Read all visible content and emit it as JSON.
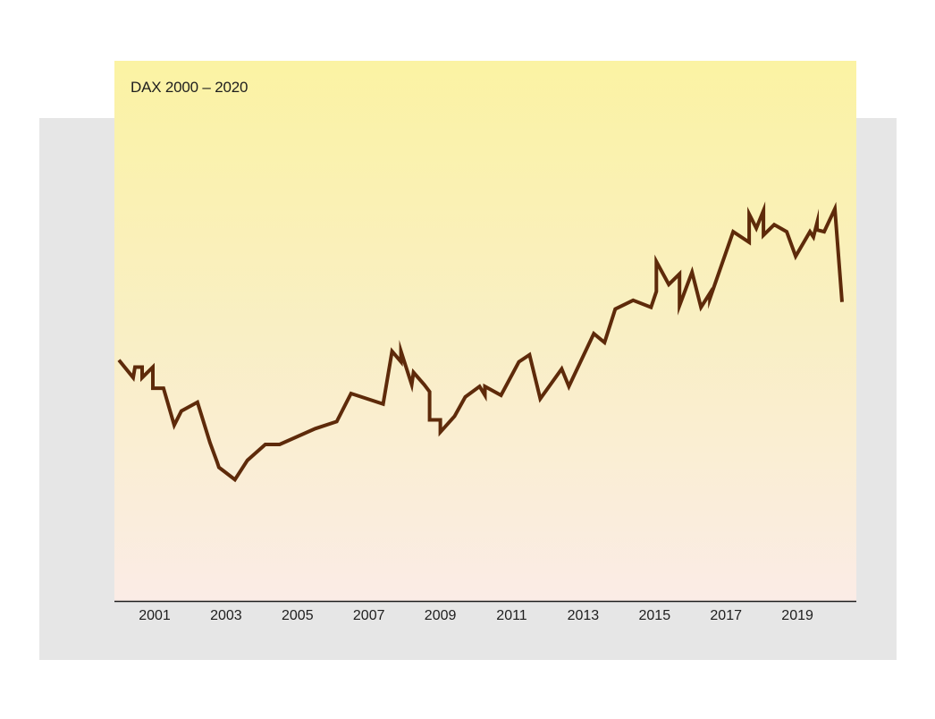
{
  "chart_data": {
    "type": "line",
    "title": "DAX 2000 – 2020",
    "xlabel": "",
    "ylabel": "",
    "x_tick_labels": [
      "2001",
      "2003",
      "2005",
      "2007",
      "2009",
      "2011",
      "2013",
      "2015",
      "2017",
      "2019"
    ],
    "x_tick_values": [
      2001,
      2003,
      2005,
      2007,
      2009,
      2011,
      2013,
      2015,
      2017,
      2019
    ],
    "xlim": [
      2000,
      2020.4
    ],
    "ylim": [
      0,
      14800
    ],
    "grid": false,
    "colors": {
      "line": "#5e2a0a",
      "axis": "#1e1e1e",
      "background_top": "#fbf3a3",
      "background_bottom": "#fbece6",
      "backdrop": "#e6e6e6"
    },
    "series": [
      {
        "x": [
          2000.0,
          2000.4,
          2000.45,
          2000.65,
          2000.65,
          2000.95,
          2000.95,
          2001.25,
          2001.55,
          2001.75,
          2002.2,
          2002.55,
          2002.75,
          2002.8,
          2003.25,
          2003.6,
          2004.1,
          2004.5,
          2005.5,
          2006.1,
          2006.5,
          2007.4,
          2007.65,
          2007.9,
          2007.9,
          2008.2,
          2008.25,
          2008.55,
          2008.7,
          2008.7,
          2009.0,
          2009.0,
          2009.4,
          2009.7,
          2010.1,
          2010.25,
          2010.25,
          2010.7,
          2011.2,
          2011.5,
          2011.8,
          2012.4,
          2012.6,
          2013.3,
          2013.6,
          2013.9,
          2014.4,
          2014.9,
          2015.05,
          2015.05,
          2015.4,
          2015.7,
          2015.7,
          2016.05,
          2016.3,
          2016.55,
          2016.55,
          2017.2,
          2017.65,
          2017.65,
          2017.85,
          2018.05,
          2018.05,
          2018.35,
          2018.7,
          2018.95,
          2019.35,
          2019.45,
          2019.55,
          2019.55,
          2019.75,
          2020.05,
          2020.25
        ],
        "y": [
          6850,
          6350,
          6650,
          6650,
          6350,
          6650,
          6050,
          6050,
          5000,
          5400,
          5650,
          4500,
          3950,
          3800,
          3450,
          4000,
          4450,
          4450,
          4900,
          5100,
          5900,
          5600,
          7100,
          6800,
          7100,
          6150,
          6500,
          6150,
          5950,
          5150,
          5150,
          4800,
          5250,
          5800,
          6100,
          5850,
          6100,
          5850,
          6800,
          7000,
          5750,
          6600,
          6100,
          7600,
          7350,
          8300,
          8550,
          8350,
          8800,
          9650,
          9000,
          9300,
          8400,
          9350,
          8350,
          8750,
          8600,
          10500,
          10200,
          11000,
          10600,
          11100,
          10400,
          10700,
          10500,
          9800,
          10500,
          10350,
          10750,
          10550,
          10500,
          11150,
          8500
        ]
      }
    ]
  }
}
